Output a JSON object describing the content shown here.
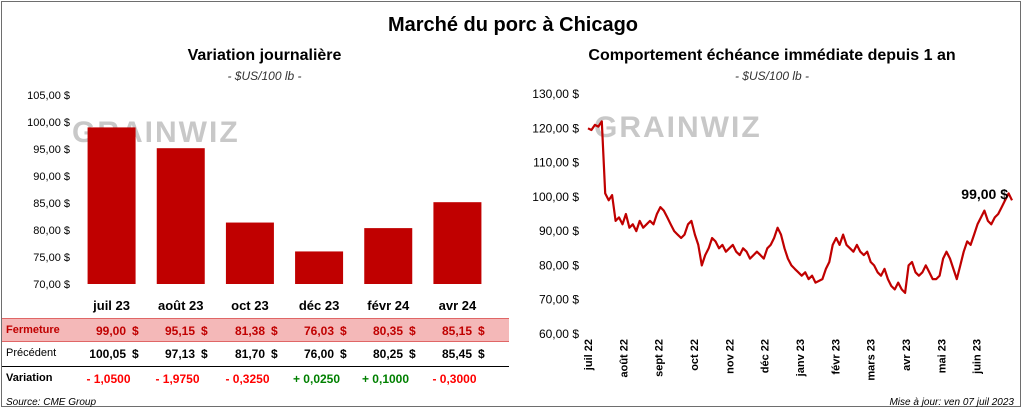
{
  "title": "Marché du porc à Chicago",
  "left_chart": {
    "title": "Variation  journalière",
    "subtitle": "- $US/100 lb -"
  },
  "right_chart": {
    "title": "Comportement  échéance  immédiate  depuis  1  an",
    "subtitle": "- $US/100 lb -",
    "last_value_label": "99,00 $"
  },
  "watermark": "GRAINWIZ",
  "chart_data": [
    {
      "type": "bar",
      "categories": [
        "juil 23",
        "août 23",
        "oct 23",
        "déc 23",
        "févr 24",
        "avr 24"
      ],
      "values": [
        99.0,
        95.15,
        81.38,
        76.03,
        80.35,
        85.15
      ],
      "ylim": [
        70,
        105
      ],
      "yticks": [
        "70,00 $",
        "75,00 $",
        "80,00 $",
        "85,00 $",
        "90,00 $",
        "95,00 $",
        "100,00 $",
        "105,00 $"
      ],
      "color": "#c00000"
    },
    {
      "type": "line",
      "xticks": [
        "juil 22",
        "août 22",
        "sept 22",
        "oct 22",
        "nov 22",
        "déc 22",
        "janv 23",
        "févr 23",
        "mars 23",
        "avr 23",
        "mai 23",
        "juin 23"
      ],
      "yticks": [
        "60,00 $",
        "70,00 $",
        "80,00 $",
        "90,00 $",
        "100,00 $",
        "110,00 $",
        "120,00 $",
        "130,00 $"
      ],
      "ylim": [
        60,
        130
      ],
      "color": "#c00000",
      "values": [
        120,
        119.5,
        121,
        120.5,
        122,
        101,
        99,
        100.5,
        93,
        94,
        92,
        95,
        91,
        92,
        90,
        93,
        91,
        92,
        93,
        92,
        95,
        97,
        96,
        94,
        92,
        90,
        89,
        88,
        89,
        92,
        93,
        89,
        86,
        80,
        83,
        85,
        88,
        87,
        85,
        86,
        84,
        85,
        86,
        84,
        83,
        85,
        84,
        82,
        83,
        84,
        83,
        82,
        85,
        86,
        88,
        91,
        89,
        85,
        82,
        80,
        79,
        78,
        77,
        78,
        76,
        77,
        75,
        75.5,
        76,
        79,
        81,
        86,
        88,
        86,
        89,
        86,
        85,
        84,
        86,
        84,
        83,
        84,
        81,
        80,
        78,
        77,
        79,
        76,
        74,
        73,
        75,
        73,
        72,
        80,
        81,
        78,
        77,
        78,
        80,
        78,
        76,
        76,
        77,
        82,
        84,
        82,
        79,
        76,
        80,
        84,
        87,
        86,
        89,
        92,
        94,
        96,
        93,
        92,
        94,
        95,
        97,
        99,
        101,
        99
      ]
    }
  ],
  "table": {
    "rows": [
      {
        "label": "Fermeture",
        "values": [
          "99,00",
          "95,15",
          "81,38",
          "76,03",
          "80,35",
          "85,15"
        ]
      },
      {
        "label": "Précédent",
        "values": [
          "100,05",
          "97,13",
          "81,70",
          "76,00",
          "80,25",
          "85,45"
        ]
      },
      {
        "label": "Variation",
        "values": [
          "- 1,0500",
          "- 1,9750",
          "- 0,3250",
          "+ 0,0250",
          "+ 0,1000",
          "- 0,3000"
        ]
      }
    ],
    "currency": "$",
    "colors": {
      "negative": "#ff0000",
      "positive": "#008000",
      "highlight": "#f4b8b8",
      "bar": "#c00000"
    }
  },
  "footer": {
    "source": "Source: CME Group",
    "updated": "Mise à jour: ven 07 juil 2023"
  }
}
